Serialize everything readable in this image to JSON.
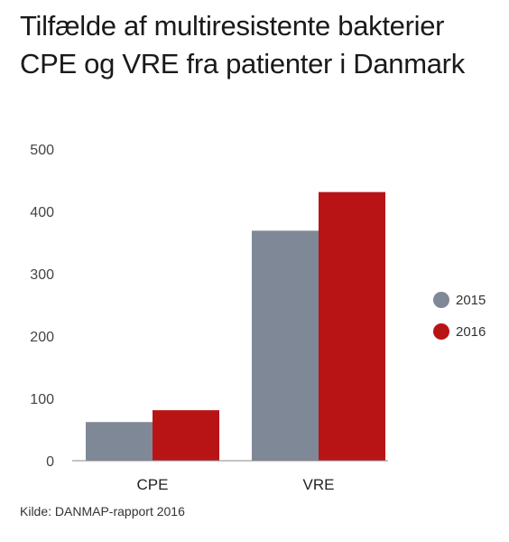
{
  "title_line1": "Tilfælde af multiresistente bakterier",
  "title_line2": "CPE og VRE fra patienter i Danmark",
  "source": "Kilde: DANMAP-rapport 2016",
  "chart_data": {
    "type": "bar",
    "title": "Tilfælde af multiresistente bakterier CPE og VRE fra patienter i Danmark",
    "categories": [
      "CPE",
      "VRE"
    ],
    "series": [
      {
        "name": "2015",
        "values": [
          62,
          369
        ],
        "color": "#7f8896"
      },
      {
        "name": "2016",
        "values": [
          81,
          431
        ],
        "color": "#b81416"
      }
    ],
    "ylim": [
      0,
      500
    ],
    "yticks": [
      0,
      100,
      200,
      300,
      400,
      500
    ],
    "grid": false,
    "legend_position": "right"
  }
}
